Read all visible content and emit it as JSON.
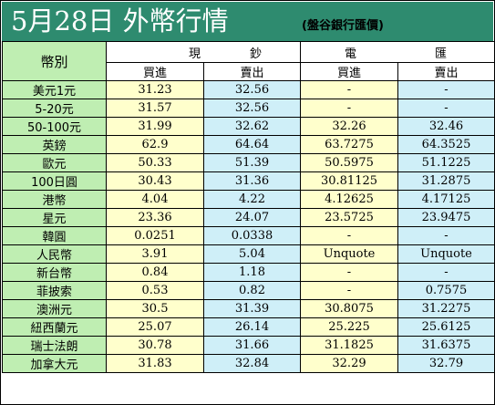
{
  "title": {
    "main": "5月28日 外幣行情",
    "source": "(盤谷銀行匯價)"
  },
  "header": {
    "currency_label": "幣別",
    "cash_group": [
      "現",
      "鈔"
    ],
    "wire_group": [
      "電",
      "匯"
    ],
    "buy_label": "買進",
    "sell_label": "賣出"
  },
  "colors": {
    "title_bar": "#2e8b6f",
    "label_column": "#bfeeb2",
    "buy_column": "#ffffcc",
    "sell_column": "#cfeff8"
  },
  "rows": [
    {
      "currency": "美元1元",
      "cash_buy": "31.23",
      "cash_sell": "32.56",
      "wire_buy": "-",
      "wire_sell": "-"
    },
    {
      "currency": "5-20元",
      "cash_buy": "31.57",
      "cash_sell": "32.56",
      "wire_buy": "-",
      "wire_sell": "-"
    },
    {
      "currency": "50-100元",
      "cash_buy": "31.99",
      "cash_sell": "32.62",
      "wire_buy": "32.26",
      "wire_sell": "32.46"
    },
    {
      "currency": "英鎊",
      "cash_buy": "62.9",
      "cash_sell": "64.64",
      "wire_buy": "63.7275",
      "wire_sell": "64.3525"
    },
    {
      "currency": "歐元",
      "cash_buy": "50.33",
      "cash_sell": "51.39",
      "wire_buy": "50.5975",
      "wire_sell": "51.1225"
    },
    {
      "currency": "100日圓",
      "cash_buy": "30.43",
      "cash_sell": "31.36",
      "wire_buy": "30.81125",
      "wire_sell": "31.2875"
    },
    {
      "currency": "港幣",
      "cash_buy": "4.04",
      "cash_sell": "4.22",
      "wire_buy": "4.12625",
      "wire_sell": "4.17125"
    },
    {
      "currency": "星元",
      "cash_buy": "23.36",
      "cash_sell": "24.07",
      "wire_buy": "23.5725",
      "wire_sell": "23.9475"
    },
    {
      "currency": "韓圓",
      "cash_buy": "0.0251",
      "cash_sell": "0.0338",
      "wire_buy": "-",
      "wire_sell": "-"
    },
    {
      "currency": "人民幣",
      "cash_buy": "3.91",
      "cash_sell": "5.04",
      "wire_buy": "Unquote",
      "wire_sell": "Unquote"
    },
    {
      "currency": "新台幣",
      "cash_buy": "0.84",
      "cash_sell": "1.18",
      "wire_buy": "-",
      "wire_sell": "-"
    },
    {
      "currency": "菲披索",
      "cash_buy": "0.53",
      "cash_sell": "0.82",
      "wire_buy": "-",
      "wire_sell": "0.7575"
    },
    {
      "currency": "澳洲元",
      "cash_buy": "30.5",
      "cash_sell": "31.39",
      "wire_buy": "30.8075",
      "wire_sell": "31.2275"
    },
    {
      "currency": "紐西蘭元",
      "cash_buy": "25.07",
      "cash_sell": "26.14",
      "wire_buy": "25.225",
      "wire_sell": "25.6125"
    },
    {
      "currency": "瑞士法朗",
      "cash_buy": "30.78",
      "cash_sell": "31.66",
      "wire_buy": "31.1825",
      "wire_sell": "31.6375"
    },
    {
      "currency": "加拿大元",
      "cash_buy": "31.83",
      "cash_sell": "32.84",
      "wire_buy": "32.29",
      "wire_sell": "32.79"
    }
  ]
}
